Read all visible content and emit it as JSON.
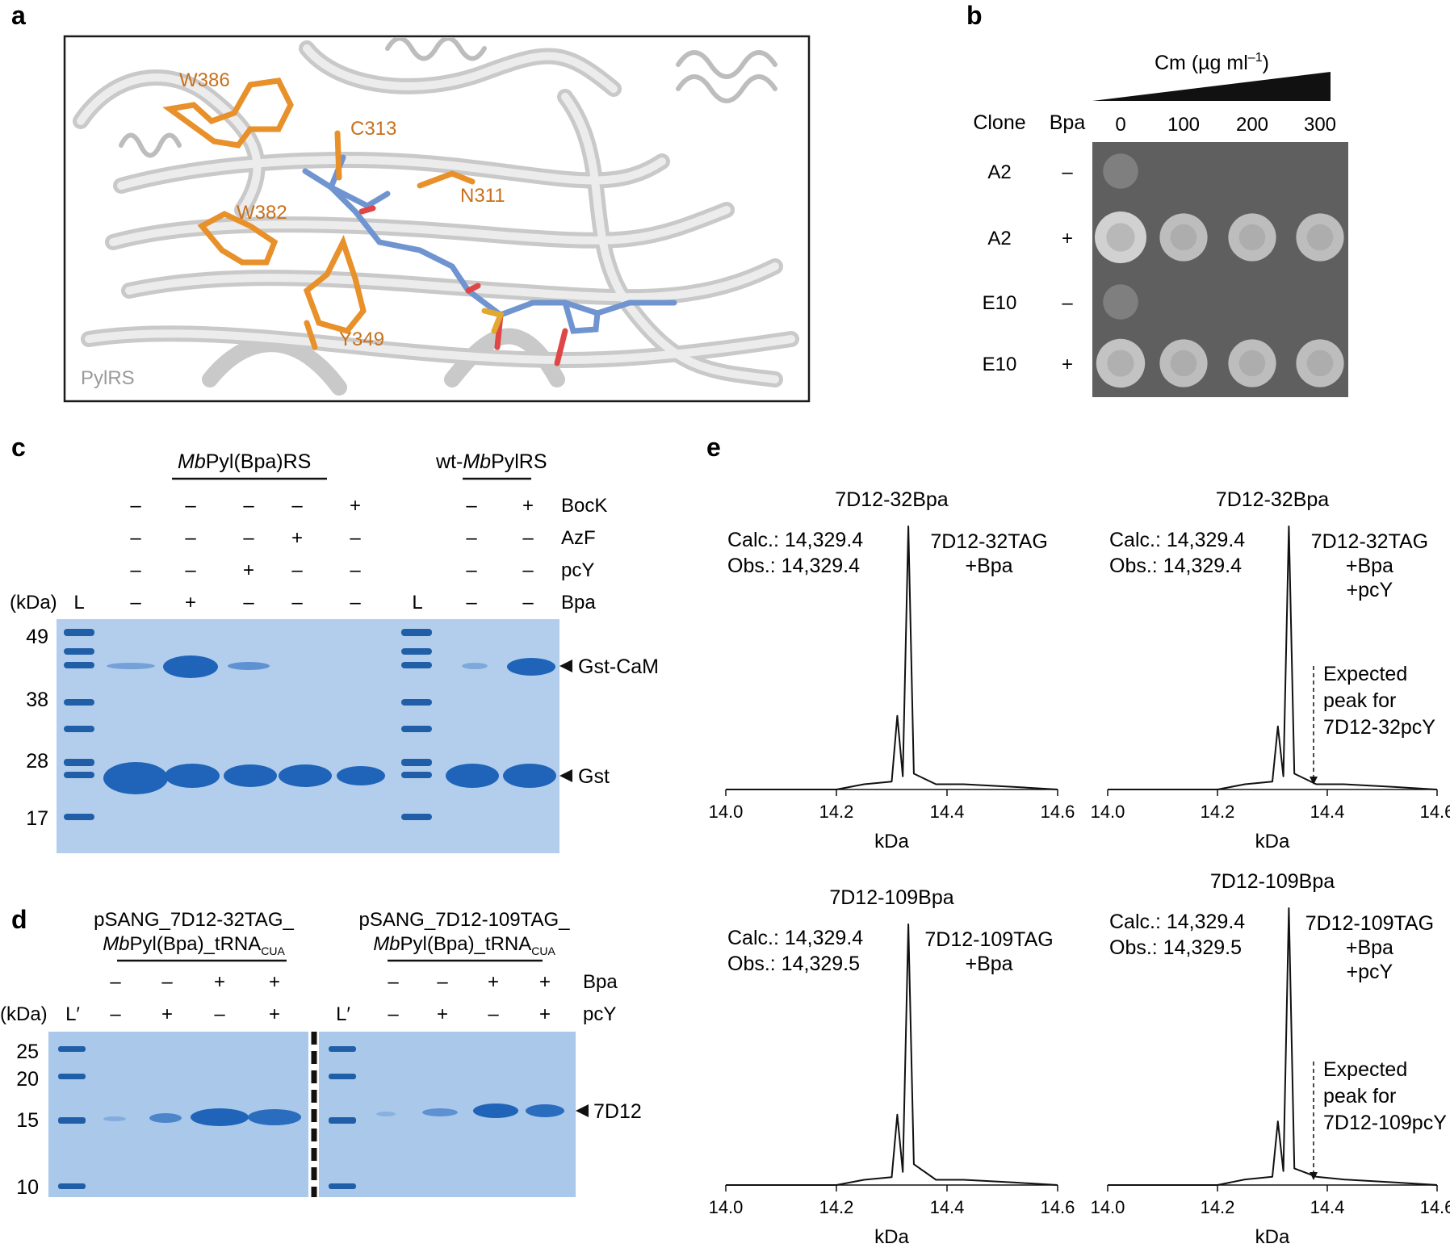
{
  "colors": {
    "residue": "#e8902a",
    "residue_label": "#c8701c",
    "ligand": "#6f94d0",
    "protein_ribbon": "#d6d6d6",
    "gel_bg": "#a9c8ea",
    "band": "#1f64b8",
    "ladder_band": "#205fa8",
    "plate_bg": "#5f5f5f",
    "colony": "#d7d7d7"
  },
  "panel_a": {
    "letter": "a",
    "protein_label": "PylRS",
    "residues": [
      "W386",
      "C313",
      "N311",
      "W382",
      "Y349"
    ]
  },
  "panel_b": {
    "letter": "b",
    "cm_label_main": "Cm (µg ml",
    "cm_label_sup": "–1",
    "cm_label_close": ")",
    "col_clone": "Clone",
    "col_bpa": "Bpa",
    "concentrations": [
      "0",
      "100",
      "200",
      "300"
    ],
    "rows": [
      {
        "clone": "A2",
        "bpa": "–",
        "growth": [
          0.15,
          0,
          0,
          0
        ]
      },
      {
        "clone": "A2",
        "bpa": "+",
        "growth": [
          1.0,
          0.8,
          0.8,
          0.8
        ]
      },
      {
        "clone": "E10",
        "bpa": "–",
        "growth": [
          0.15,
          0,
          0,
          0
        ]
      },
      {
        "clone": "E10",
        "bpa": "+",
        "growth": [
          0.85,
          0.8,
          0.8,
          0.8
        ]
      }
    ]
  },
  "panel_c": {
    "letter": "c",
    "group1": {
      "italic": "Mb",
      "plain": "Pyl(Bpa)RS"
    },
    "group2": {
      "prefix": "wt-",
      "italic": "Mb",
      "plain": "PylRS"
    },
    "kda_header": "(kDa)",
    "ladder_label": "L",
    "row_labels": [
      "BocK",
      "AzF",
      "pcY",
      "Bpa"
    ],
    "lanes": [
      {
        "BocK": "–",
        "AzF": "–",
        "pcY": "–",
        "Bpa": "–"
      },
      {
        "BocK": "–",
        "AzF": "–",
        "pcY": "–",
        "Bpa": "+"
      },
      {
        "BocK": "–",
        "AzF": "–",
        "pcY": "+",
        "Bpa": "–"
      },
      {
        "BocK": "–",
        "AzF": "+",
        "pcY": "–",
        "Bpa": "–"
      },
      {
        "BocK": "+",
        "AzF": "–",
        "pcY": "–",
        "Bpa": "–"
      },
      {
        "BocK": "–",
        "AzF": "–",
        "pcY": "–",
        "Bpa": "–"
      },
      {
        "BocK": "+",
        "AzF": "–",
        "pcY": "–",
        "Bpa": "–"
      }
    ],
    "marker_values": [
      "49",
      "38",
      "28",
      "17"
    ],
    "band_labels": [
      "Gst-CaM",
      "Gst"
    ]
  },
  "panel_d": {
    "letter": "d",
    "group1_line1": "pSANG_7D12-32TAG_",
    "group2_line1": "pSANG_7D12-109TAG_",
    "group_line2": {
      "italic": "Mb",
      "plain": "Pyl(Bpa)_tRNA",
      "sub": "CUA"
    },
    "kda_header": "(kDa)",
    "ladder_label": "L′",
    "row_labels": [
      "Bpa",
      "pcY"
    ],
    "bpa": [
      "–",
      "–",
      "+",
      "+"
    ],
    "pcy": [
      "–",
      "+",
      "–",
      "+"
    ],
    "marker_values": [
      "25",
      "20",
      "15",
      "10"
    ],
    "band_label": "7D12"
  },
  "panel_e": {
    "letter": "e",
    "x_ticks": [
      "14.0",
      "14.2",
      "14.4",
      "14.6"
    ],
    "xlabel": "kDa",
    "plots": [
      {
        "title": "7D12-32Bpa",
        "calc": "Calc.: 14,329.4",
        "obs": "Obs.: 14,329.4",
        "condition": [
          "7D12-32TAG",
          "+Bpa"
        ],
        "expected": []
      },
      {
        "title": "7D12-32Bpa",
        "calc": "Calc.: 14,329.4",
        "obs": "Obs.: 14,329.4",
        "condition": [
          "7D12-32TAG",
          "+Bpa",
          "+pcY"
        ],
        "expected": [
          "Expected",
          "peak for",
          "7D12-32pcY"
        ]
      },
      {
        "title": "7D12-109Bpa",
        "calc": "Calc.: 14,329.4",
        "obs": "Obs.: 14,329.5",
        "condition": [
          "7D12-109TAG",
          "+Bpa"
        ],
        "expected": []
      },
      {
        "title": "7D12-109Bpa",
        "calc": "Calc.: 14,329.4",
        "obs": "Obs.: 14,329.5",
        "condition": [
          "7D12-109TAG",
          "+Bpa",
          "+pcY"
        ],
        "expected": [
          "Expected",
          "peak for",
          "7D12-109pcY"
        ]
      }
    ]
  },
  "chart_data": [
    {
      "type": "line",
      "title": "7D12-32Bpa",
      "xlabel": "kDa",
      "ylabel": "",
      "xlim": [
        14.0,
        14.6
      ],
      "series": [
        {
          "x": [
            14.0,
            14.2,
            14.25,
            14.3,
            14.31,
            14.32,
            14.33,
            14.34,
            14.38,
            14.43,
            14.52,
            14.6
          ],
          "y": [
            0.0,
            0.0,
            0.02,
            0.03,
            0.28,
            0.05,
            1.0,
            0.06,
            0.02,
            0.02,
            0.01,
            0.0
          ]
        }
      ]
    },
    {
      "type": "line",
      "title": "7D12-32Bpa",
      "xlabel": "kDa",
      "ylabel": "",
      "xlim": [
        14.0,
        14.6
      ],
      "series": [
        {
          "x": [
            14.0,
            14.2,
            14.25,
            14.3,
            14.31,
            14.32,
            14.33,
            14.34,
            14.38,
            14.43,
            14.52,
            14.6
          ],
          "y": [
            0.0,
            0.0,
            0.02,
            0.03,
            0.24,
            0.05,
            1.0,
            0.06,
            0.02,
            0.02,
            0.01,
            0.0
          ]
        }
      ],
      "annotations": [
        "Expected peak for 7D12-32pcY"
      ]
    },
    {
      "type": "line",
      "title": "7D12-109Bpa",
      "xlabel": "kDa",
      "ylabel": "",
      "xlim": [
        14.0,
        14.6
      ],
      "series": [
        {
          "x": [
            14.0,
            14.2,
            14.25,
            14.3,
            14.31,
            14.32,
            14.33,
            14.34,
            14.38,
            14.43,
            14.52,
            14.6
          ],
          "y": [
            0.0,
            0.0,
            0.02,
            0.03,
            0.27,
            0.05,
            1.0,
            0.08,
            0.02,
            0.02,
            0.01,
            0.0
          ]
        }
      ]
    },
    {
      "type": "line",
      "title": "7D12-109Bpa",
      "xlabel": "kDa",
      "ylabel": "",
      "xlim": [
        14.0,
        14.6
      ],
      "series": [
        {
          "x": [
            14.0,
            14.2,
            14.25,
            14.3,
            14.31,
            14.32,
            14.33,
            14.34,
            14.38,
            14.43,
            14.52,
            14.6
          ],
          "y": [
            0.0,
            0.0,
            0.02,
            0.03,
            0.23,
            0.05,
            1.0,
            0.06,
            0.03,
            0.02,
            0.01,
            0.0
          ]
        }
      ],
      "annotations": [
        "Expected peak for 7D12-109pcY"
      ]
    }
  ]
}
